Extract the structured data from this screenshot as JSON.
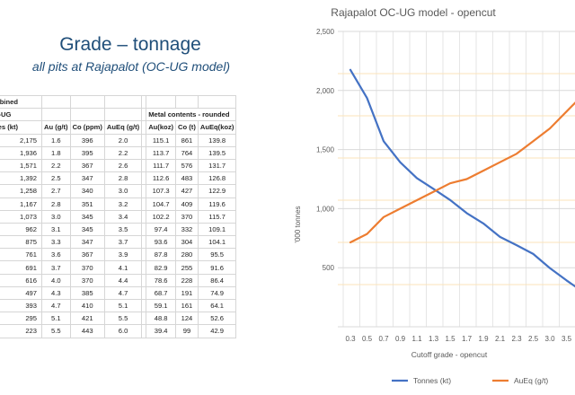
{
  "slide": {
    "title": "Grade – tonnage",
    "subtitle": "all pits at Rajapalot (OC-UG model)"
  },
  "table": {
    "header_row1": [
      "mbined",
      "",
      "",
      "",
      "",
      "",
      "",
      ""
    ],
    "header_row2": [
      "C-UG",
      "",
      "",
      "",
      "",
      "Metal contents - rounded",
      "",
      ""
    ],
    "header_row3": [
      "nes (kt)",
      "Au (g/t)",
      "Co (ppm)",
      "AuEq (g/t)",
      "",
      "Au(koz)",
      "Co (t)",
      "AuEq(koz)"
    ],
    "rows": [
      [
        "2,175",
        "1.6",
        "396",
        "2.0",
        "",
        "115.1",
        "861",
        "139.8"
      ],
      [
        "1,936",
        "1.8",
        "395",
        "2.2",
        "",
        "113.7",
        "764",
        "139.5"
      ],
      [
        "1,571",
        "2.2",
        "367",
        "2.6",
        "",
        "111.7",
        "576",
        "131.7"
      ],
      [
        "1,392",
        "2.5",
        "347",
        "2.8",
        "",
        "112.6",
        "483",
        "126.8"
      ],
      [
        "1,258",
        "2.7",
        "340",
        "3.0",
        "",
        "107.3",
        "427",
        "122.9"
      ],
      [
        "1,167",
        "2.8",
        "351",
        "3.2",
        "",
        "104.7",
        "409",
        "119.6"
      ],
      [
        "1,073",
        "3.0",
        "345",
        "3.4",
        "",
        "102.2",
        "370",
        "115.7"
      ],
      [
        "962",
        "3.1",
        "345",
        "3.5",
        "",
        "97.4",
        "332",
        "109.1"
      ],
      [
        "875",
        "3.3",
        "347",
        "3.7",
        "",
        "93.6",
        "304",
        "104.1"
      ],
      [
        "761",
        "3.6",
        "367",
        "3.9",
        "",
        "87.8",
        "280",
        "95.5"
      ],
      [
        "691",
        "3.7",
        "370",
        "4.1",
        "",
        "82.9",
        "255",
        "91.6"
      ],
      [
        "616",
        "4.0",
        "370",
        "4.4",
        "",
        "78.6",
        "228",
        "86.4"
      ],
      [
        "497",
        "4.3",
        "385",
        "4.7",
        "",
        "68.7",
        "191",
        "74.9"
      ],
      [
        "393",
        "4.7",
        "410",
        "5.1",
        "",
        "59.1",
        "161",
        "64.1"
      ],
      [
        "295",
        "5.1",
        "421",
        "5.5",
        "",
        "48.8",
        "124",
        "52.6"
      ],
      [
        "223",
        "5.5",
        "443",
        "6.0",
        "",
        "39.4",
        "99",
        "42.9"
      ]
    ]
  },
  "chart_data": {
    "type": "line",
    "title": "Rajapalot OC-UG model - opencut",
    "xlabel": "Cutoff grade - opencut",
    "ylabel": "'000 tonnes",
    "ylim": [
      0,
      2500
    ],
    "yticks": [
      "500",
      "1,000",
      "1,500",
      "2,000",
      "2,500"
    ],
    "secondary_ylim": [
      0,
      7
    ],
    "x": [
      "0.3",
      "0.5",
      "0.7",
      "0.9",
      "1.1",
      "1.3",
      "1.5",
      "1.7",
      "1.9",
      "2.1",
      "2.3",
      "2.5",
      "3.0",
      "3.5",
      "4.0"
    ],
    "series": [
      {
        "name": "Tonnes (kt)",
        "axis": "left",
        "color": "#4472c4",
        "values": [
          2175,
          1936,
          1571,
          1392,
          1258,
          1167,
          1073,
          962,
          875,
          761,
          691,
          616,
          497,
          393,
          295
        ]
      },
      {
        "name": "AuEq (g/t)",
        "axis": "right",
        "color": "#ed7d31",
        "values": [
          2.0,
          2.2,
          2.6,
          2.8,
          3.0,
          3.2,
          3.4,
          3.5,
          3.7,
          3.9,
          4.1,
          4.4,
          4.7,
          5.1,
          5.5
        ]
      }
    ],
    "grid": true,
    "legend": "bottom"
  }
}
